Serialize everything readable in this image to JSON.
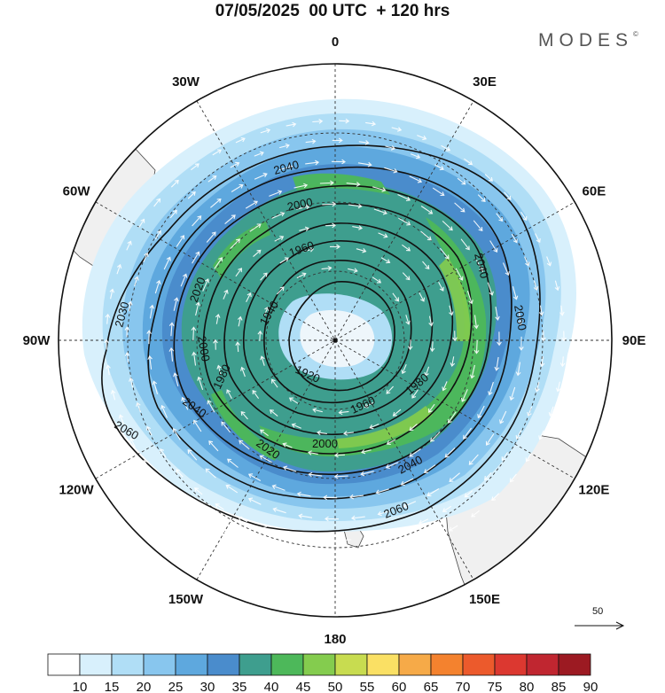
{
  "header": {
    "title": "07/05/2025  00 UTC  + 120 hrs",
    "brand": "MODES",
    "brand_mark": "©"
  },
  "map": {
    "projection": "polar-stereographic-south",
    "lon_labels": [
      {
        "name": "lon-label-0",
        "text": "0",
        "deg": 0
      },
      {
        "name": "lon-label-30e",
        "text": "30E",
        "deg": 30
      },
      {
        "name": "lon-label-60e",
        "text": "60E",
        "deg": 60
      },
      {
        "name": "lon-label-90e",
        "text": "90E",
        "deg": 90
      },
      {
        "name": "lon-label-120e",
        "text": "120E",
        "deg": 120
      },
      {
        "name": "lon-label-150e",
        "text": "150E",
        "deg": 150
      },
      {
        "name": "lon-label-180",
        "text": "180",
        "deg": 180
      },
      {
        "name": "lon-label-150w",
        "text": "150W",
        "deg": 210
      },
      {
        "name": "lon-label-120w",
        "text": "120W",
        "deg": 240
      },
      {
        "name": "lon-label-90w",
        "text": "90W",
        "deg": 270
      },
      {
        "name": "lon-label-60w",
        "text": "60W",
        "deg": 300
      },
      {
        "name": "lon-label-30w",
        "text": "30W",
        "deg": 330
      }
    ],
    "contour_units": "dam",
    "contour_labels": [
      {
        "text": "2040",
        "name": "contour-label-2040"
      },
      {
        "text": "2000",
        "name": "contour-label-2000"
      },
      {
        "text": "1960",
        "name": "contour-label-1960"
      },
      {
        "text": "1940",
        "name": "contour-label-1940"
      },
      {
        "text": "2020",
        "name": "contour-label-2020"
      },
      {
        "text": "2030",
        "name": "contour-label-2030"
      },
      {
        "text": "2000",
        "name": "contour-label-2000b"
      },
      {
        "text": "1980",
        "name": "contour-label-1980"
      },
      {
        "text": "1920",
        "name": "contour-label-1920"
      },
      {
        "text": "1960",
        "name": "contour-label-1960b"
      },
      {
        "text": "1980",
        "name": "contour-label-1980b"
      },
      {
        "text": "2040",
        "name": "contour-label-2040b"
      },
      {
        "text": "2060",
        "name": "contour-label-2060"
      },
      {
        "text": "2040",
        "name": "contour-label-2040c"
      },
      {
        "text": "2060",
        "name": "contour-label-2060b"
      },
      {
        "text": "2040",
        "name": "contour-label-2040d"
      },
      {
        "text": "2060",
        "name": "contour-label-2060c"
      },
      {
        "text": "2020",
        "name": "contour-label-2020b"
      },
      {
        "text": "2000",
        "name": "contour-label-2000c"
      }
    ],
    "reference_vector": "50",
    "arrow_color": "#ffffff",
    "land_color": "#f0f0f0"
  },
  "colorbar": {
    "labels": [
      "10",
      "15",
      "20",
      "25",
      "30",
      "35",
      "40",
      "45",
      "50",
      "55",
      "60",
      "65",
      "70",
      "75",
      "80",
      "85",
      "90"
    ],
    "colors": [
      "#ffffff",
      "#d8f0fc",
      "#b0def6",
      "#88c6ee",
      "#5ea8de",
      "#4a8ccc",
      "#3e9e8e",
      "#4db85a",
      "#84cc4e",
      "#c8dc50",
      "#fae064",
      "#f6aa48",
      "#f4822e",
      "#ec5a2c",
      "#dc3830",
      "#c02630",
      "#9c1a22"
    ]
  }
}
